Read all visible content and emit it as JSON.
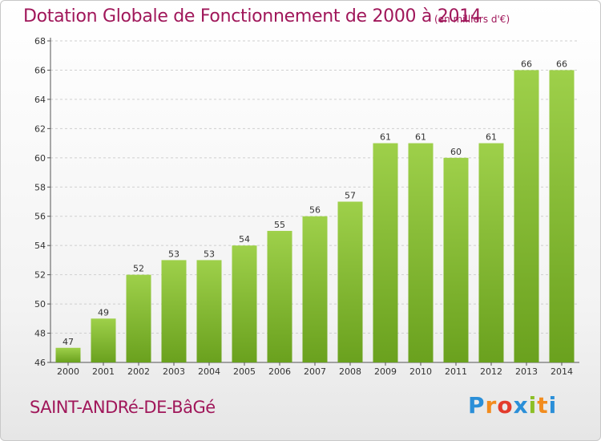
{
  "header": {
    "title": "Dotation Globale de Fonctionnement de 2000 à 2014",
    "unit": "(en milliers d'€)"
  },
  "footer": {
    "commune": "SAINT-ANDRé-DE-BâGé",
    "logo_letters": [
      "P",
      "r",
      "o",
      "x",
      "i",
      "t",
      "i"
    ],
    "logo_colors": [
      "#2b8fd8",
      "#f28c1e",
      "#e33b2c",
      "#2b8fd8",
      "#8cbf26",
      "#f28c1e",
      "#2b8fd8"
    ]
  },
  "colors": {
    "bar_light": "#9ed04a",
    "bar_dark": "#6aa11e",
    "grid": "#cfcfcf",
    "title": "#a0175a"
  },
  "chart_data": {
    "type": "bar",
    "title": "Dotation Globale de Fonctionnement de 2000 à 2014",
    "subtitle": "(en milliers d'€)",
    "xlabel": "",
    "ylabel": "",
    "categories": [
      "2000",
      "2001",
      "2002",
      "2003",
      "2004",
      "2005",
      "2006",
      "2007",
      "2008",
      "2009",
      "2010",
      "2011",
      "2012",
      "2013",
      "2014"
    ],
    "values": [
      47,
      49,
      52,
      53,
      53,
      54,
      55,
      56,
      57,
      61,
      61,
      60,
      61,
      66,
      66
    ],
    "ylim": [
      46,
      68
    ],
    "yticks": [
      46,
      48,
      50,
      52,
      54,
      56,
      58,
      60,
      62,
      64,
      66,
      68
    ],
    "grid": true,
    "legend": "none"
  }
}
